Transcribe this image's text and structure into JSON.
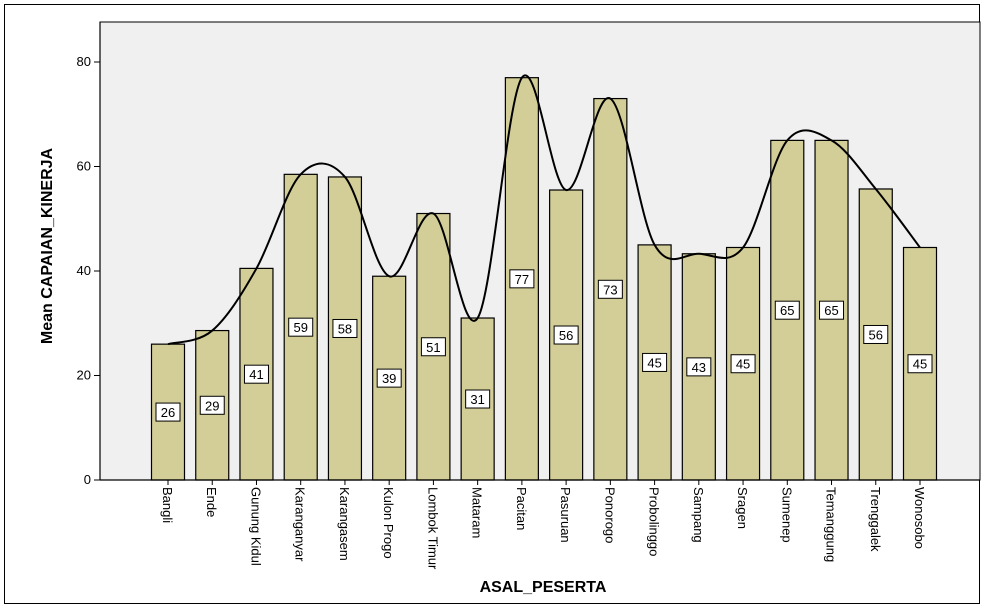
{
  "chart_data": {
    "type": "bar",
    "xlabel": "ASAL_PESERTA",
    "ylabel": "Mean CAPAIAN_KINERJA",
    "ylim": [
      0,
      87
    ],
    "yticks": [
      0,
      20,
      40,
      60,
      80
    ],
    "grid": false,
    "plot_background": "#f0f0f0",
    "bar_color": "#d3ce97",
    "bar_edge_color": "#000000",
    "line_color": "#000000",
    "categories": [
      "Bangli",
      "Ende",
      "Gunung Kidul",
      "Karanganyar",
      "Karangasem",
      "Kulon Progo",
      "Lombok Timur",
      "Mataram",
      "Pacitan",
      "Pasuruan",
      "Ponorogo",
      "Probolinggo",
      "Sampang",
      "Sragen",
      "Sumenep",
      "Temanggung",
      "Trenggalek",
      "Wonosobo"
    ],
    "values": [
      26,
      28.6,
      40.5,
      58.5,
      58,
      39,
      51,
      31,
      77,
      55.5,
      73,
      45,
      43.3,
      44.5,
      65,
      65,
      55.7,
      44.5
    ],
    "data_labels": [
      "26",
      "29",
      "41",
      "59",
      "58",
      "39",
      "51",
      "31",
      "77",
      "56",
      "73",
      "45",
      "43",
      "45",
      "65",
      "65",
      "56",
      "45"
    ]
  }
}
